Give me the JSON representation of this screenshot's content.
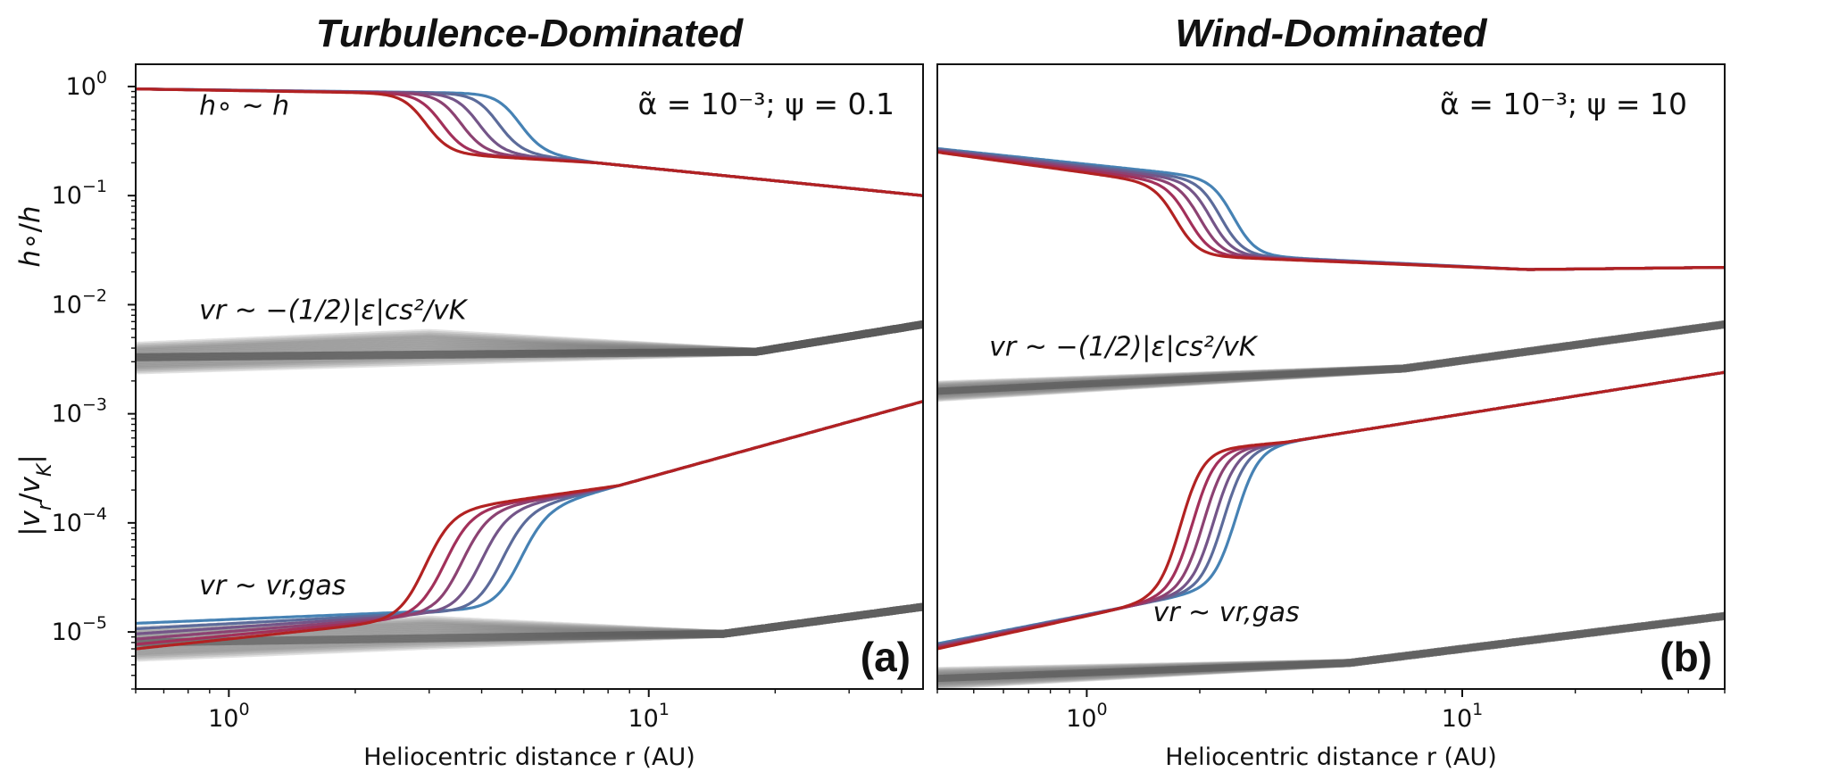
{
  "chart_data": [
    {
      "type": "line",
      "title": "Turbulence-Dominated",
      "panel_label": "(a)",
      "params": "α̃ = 10⁻³; ψ = 0.1",
      "xlabel": "Heliocentric distance r (AU)",
      "xscale": "log",
      "yscale": "log",
      "xlim": [
        0.6,
        45
      ],
      "ylim": [
        3e-06,
        1.6
      ],
      "grid": false,
      "xticks": [
        {
          "base": "10",
          "exp": "0"
        },
        {
          "base": "10",
          "exp": "1"
        }
      ],
      "yticks": [
        {
          "base": "10",
          "exp": "0"
        },
        {
          "base": "10",
          "exp": "−1"
        },
        {
          "base": "10",
          "exp": "−2"
        },
        {
          "base": "10",
          "exp": "−3"
        },
        {
          "base": "10",
          "exp": "−4"
        },
        {
          "base": "10",
          "exp": "−5"
        }
      ],
      "annotations": {
        "height": "h∘ ~ h",
        "vr_upper": "vr ~ −(1/2)|ε|cs²/vK",
        "vr_lower": "vr ~ vr,gas"
      },
      "annotation_positions": {
        "height": [
          0.85,
          0.55
        ],
        "vr_upper": [
          0.85,
          0.0074
        ],
        "vr_lower": [
          0.85,
          2.2e-05
        ]
      },
      "series_colors": [
        "#4682b4",
        "#5c6b9a",
        "#745588",
        "#8c4272",
        "#a2305a",
        "#b22222"
      ],
      "height_family": {
        "y_left": 0.95,
        "y_right": 0.1,
        "knee_x": 7.5,
        "knee_y": 0.2,
        "transition_r": [
          5.5,
          4.9,
          4.4,
          4.0,
          3.6,
          3.3
        ]
      },
      "vr_gas_family": {
        "y_left": [
          1.2e-05,
          1.07e-05,
          9.6e-06,
          8.6e-06,
          7.7e-06,
          7e-06
        ],
        "y_mid": [
          1.55e-05,
          1.5e-05,
          1.46e-05,
          1.42e-05,
          1.39e-05,
          1.35e-05
        ],
        "knee_x": 8.5,
        "knee_y": 0.00022,
        "y_right": 0.0013,
        "transition_r": [
          6.2,
          5.6,
          5.0,
          4.5,
          4.1,
          3.7
        ]
      },
      "grey_upper": {
        "y_left": [
          0.0025,
          0.0042
        ],
        "y_hump": [
          0.003,
          0.0055
        ],
        "hump_x": 3.0,
        "merge_x": 18,
        "merge_y": 0.0037,
        "y_right": 0.0066
      },
      "grey_lower": {
        "y_left": [
          5.8e-06,
          1.05e-05
        ],
        "y_hump": [
          7.5e-06,
          1.3e-05
        ],
        "hump_x": 3.0,
        "merge_x": 15,
        "merge_y": 9.6e-06,
        "y_right": 1.7e-05
      }
    },
    {
      "type": "line",
      "title": "Wind-Dominated",
      "panel_label": "(b)",
      "params": "α̃ = 10⁻³; ψ = 10",
      "xlabel": "Heliocentric distance r (AU)",
      "xscale": "log",
      "yscale": "log",
      "xlim": [
        0.4,
        50
      ],
      "ylim": [
        3e-06,
        1.6
      ],
      "grid": false,
      "xticks": [
        {
          "base": "10",
          "exp": "0"
        },
        {
          "base": "10",
          "exp": "1"
        }
      ],
      "yticks": [],
      "annotations": {
        "vr_upper": "vr ~ −(1/2)|ε|cs²/vK",
        "vr_lower": "vr ~ vr,gas"
      },
      "annotation_positions": {
        "vr_upper": [
          0.55,
          0.0034
        ],
        "vr_lower": [
          1.5,
          1.25e-05
        ]
      },
      "series_colors": [
        "#4682b4",
        "#5c6b9a",
        "#745588",
        "#8c4272",
        "#a2305a",
        "#b22222"
      ],
      "height_family": {
        "y_left": [
          0.27,
          0.25
        ],
        "y_before": [
          0.145,
          0.13
        ],
        "y_after": 0.028,
        "flat_x": 15,
        "flat_y": 0.021,
        "y_right": 0.022,
        "transition_r": [
          2.7,
          2.5,
          2.35,
          2.2,
          2.05,
          1.9
        ]
      },
      "vr_gas_family": {
        "y_left": [
          7.8e-06,
          7e-06
        ],
        "y_before": 1.9e-05,
        "before_x": 1.5,
        "y_after": 0.00055,
        "after_x": 3.4,
        "y_right": 0.0024,
        "transition_r": [
          2.8,
          2.6,
          2.45,
          2.3,
          2.15,
          2.0
        ]
      },
      "grey_upper": {
        "y_left": [
          0.0014,
          0.00185
        ],
        "merge_x": 7,
        "merge_y": 0.0026,
        "y_right": 0.0066
      },
      "grey_lower": {
        "y_left": [
          3.2e-06,
          4.4e-06
        ],
        "merge_x": 5,
        "merge_y": 5.2e-06,
        "y_right": 1.4e-05
      }
    }
  ]
}
